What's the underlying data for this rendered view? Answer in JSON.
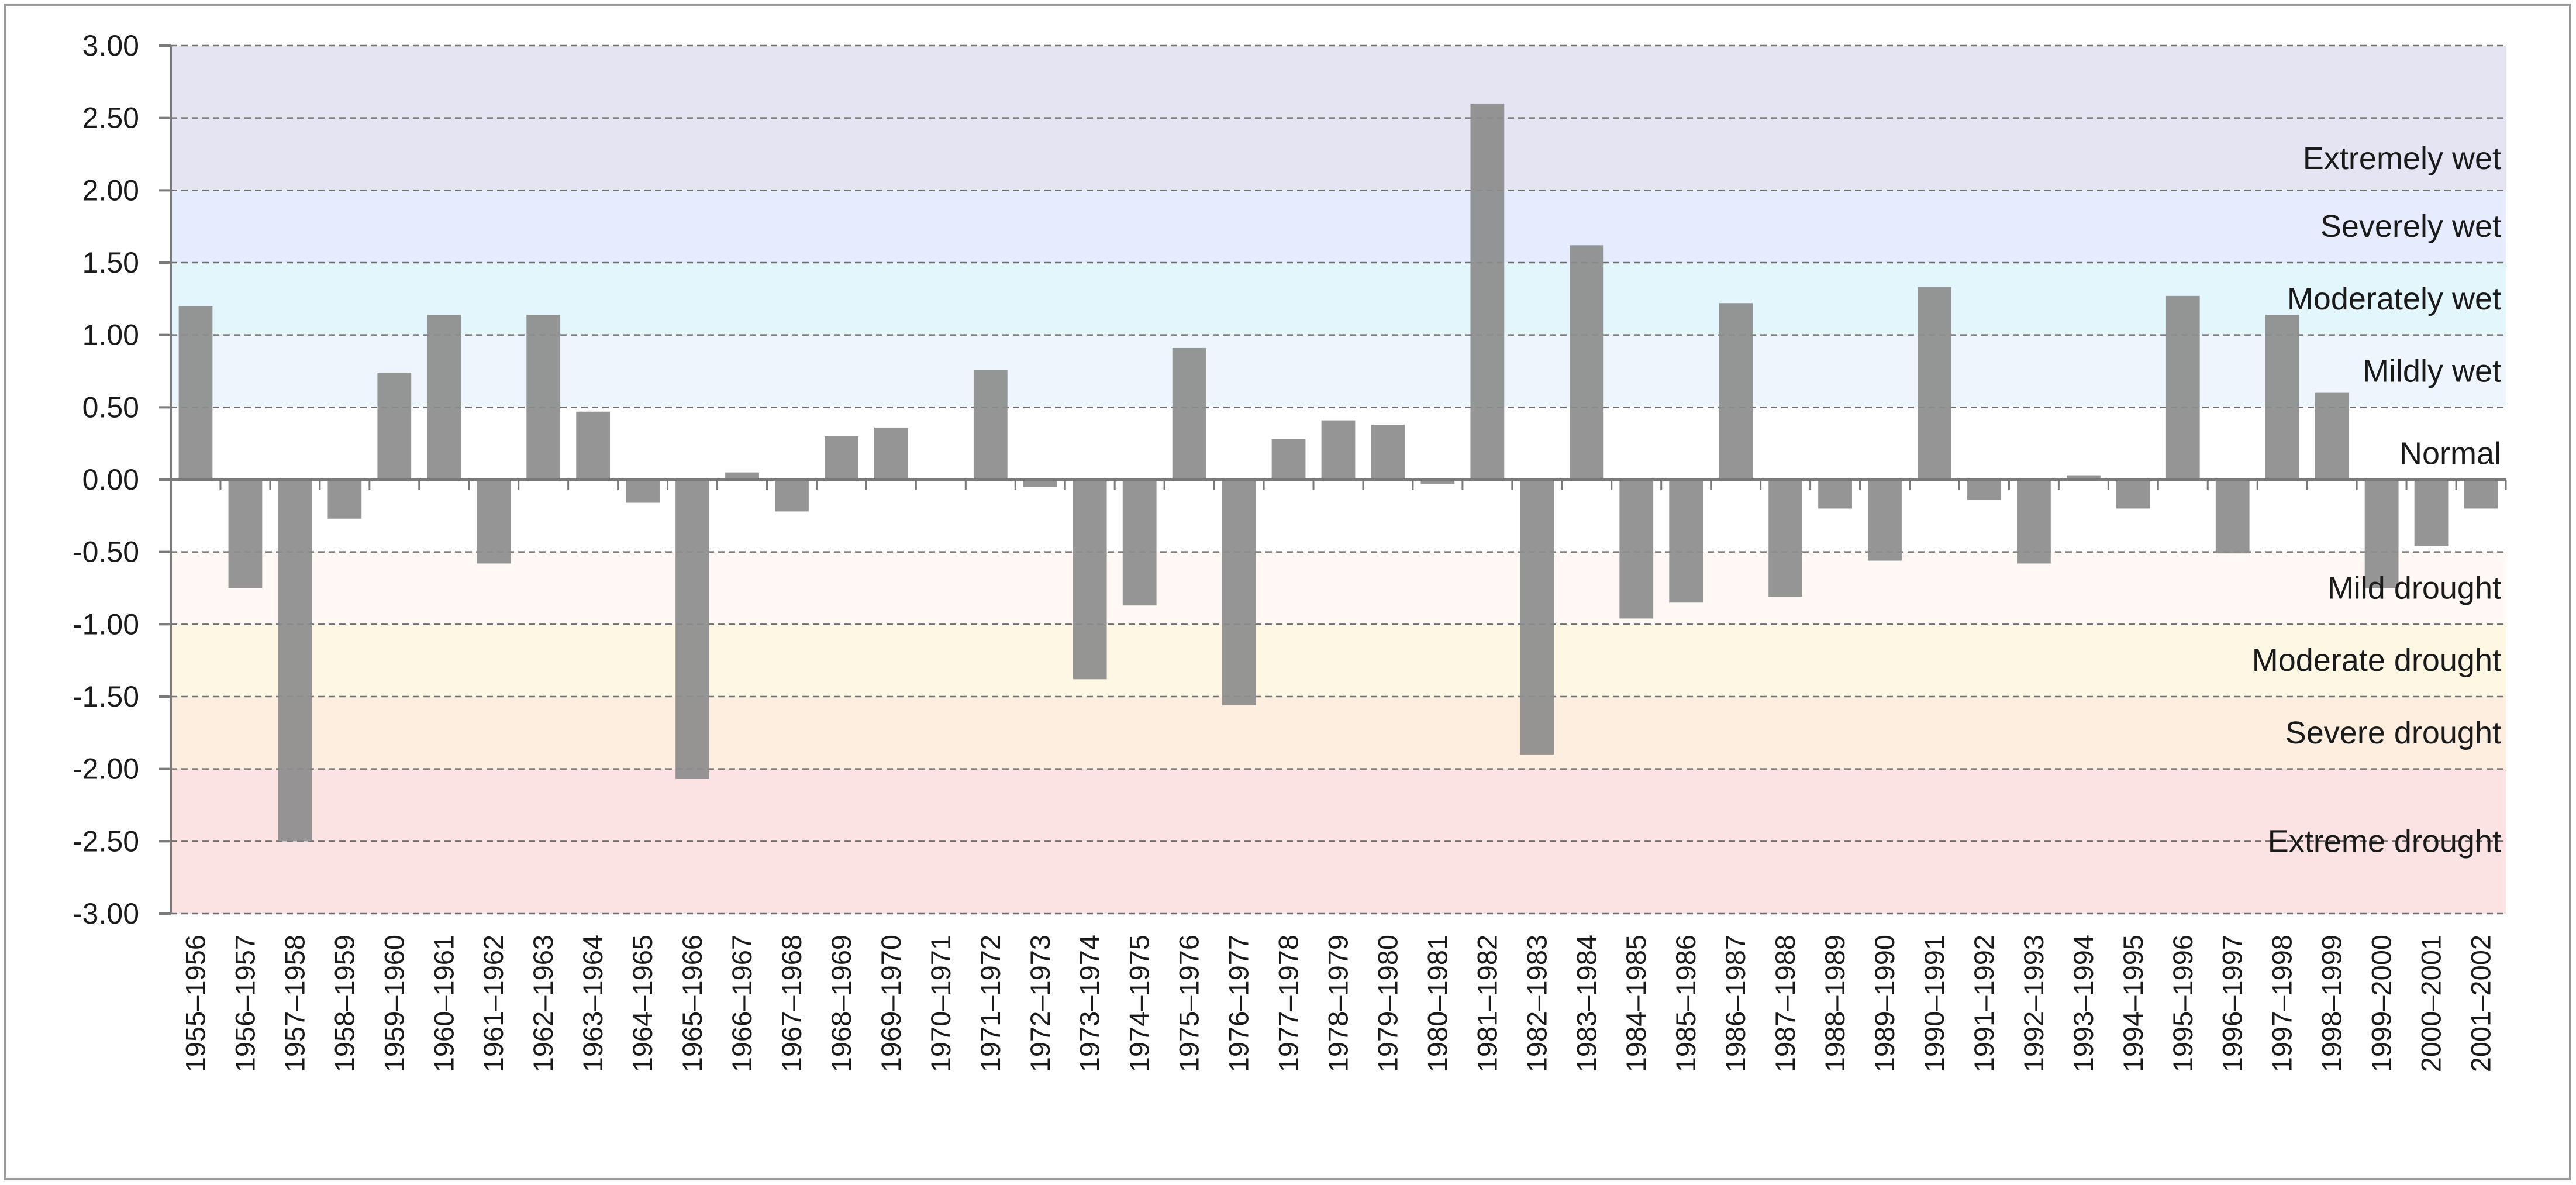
{
  "chart_data": {
    "type": "bar",
    "title": "",
    "xlabel": "",
    "ylabel": "",
    "ylim": [
      -3.0,
      3.0
    ],
    "yticks": [
      "3.00",
      "2.50",
      "2.00",
      "1.50",
      "1.00",
      "0.50",
      "0.00",
      "-0.50",
      "-1.00",
      "-1.50",
      "-2.00",
      "-2.50",
      "-3.00"
    ],
    "grid": true,
    "bar_color": "#8c8c8c",
    "categories": [
      "1955–1956",
      "1956–1957",
      "1957–1958",
      "1958–1959",
      "1959–1960",
      "1960–1961",
      "1961–1962",
      "1962–1963",
      "1963–1964",
      "1964–1965",
      "1965–1966",
      "1966–1967",
      "1967–1968",
      "1968–1969",
      "1969–1970",
      "1970–1971",
      "1971–1972",
      "1972–1973",
      "1973–1974",
      "1974–1975",
      "1975–1976",
      "1976–1977",
      "1977–1978",
      "1978–1979",
      "1979–1980",
      "1980–1981",
      "1981–1982",
      "1982–1983",
      "1983–1984",
      "1984–1985",
      "1985–1986",
      "1986–1987",
      "1987–1988",
      "1988–1989",
      "1989–1990",
      "1990–1991",
      "1991–1992",
      "1992–1993",
      "1993–1994",
      "1994–1995",
      "1995–1996",
      "1996–1997",
      "1997–1998",
      "1998–1999",
      "1999–2000",
      "2000–2001",
      "2001–2002"
    ],
    "values": [
      1.2,
      -0.75,
      -2.5,
      -0.27,
      0.74,
      1.14,
      -0.58,
      1.14,
      0.47,
      -0.16,
      -2.07,
      0.05,
      -0.22,
      0.3,
      0.36,
      0.0,
      0.76,
      -0.05,
      -1.38,
      -0.87,
      0.91,
      -1.56,
      0.28,
      0.41,
      0.38,
      -0.03,
      2.6,
      -1.9,
      1.62,
      -0.96,
      -0.85,
      1.22,
      -0.81,
      -0.2,
      -0.56,
      1.33,
      -0.14,
      -0.58,
      0.03,
      -0.2,
      1.27,
      -0.51,
      1.14,
      0.6,
      -0.75,
      -0.46,
      -0.2
    ],
    "bands": [
      {
        "label": "Extremely wet",
        "from": 2.0,
        "to": 3.0,
        "color": "#e5e4f3"
      },
      {
        "label": "Severely wet",
        "from": 1.5,
        "to": 2.0,
        "color": "#e6ecfd"
      },
      {
        "label": "Moderately wet",
        "from": 1.0,
        "to": 1.5,
        "color": "#e2f6fb"
      },
      {
        "label": "Mildly wet",
        "from": 0.5,
        "to": 1.0,
        "color": "#eef5fc"
      },
      {
        "label": "Normal",
        "from": -0.5,
        "to": 0.5,
        "color": "#ffffff"
      },
      {
        "label": "Mild drought",
        "from": -1.0,
        "to": -0.5,
        "color": "#fff8f4"
      },
      {
        "label": "Moderate drought",
        "from": -1.5,
        "to": -1.0,
        "color": "#fdf7e3"
      },
      {
        "label": "Severe drought",
        "from": -2.0,
        "to": -1.5,
        "color": "#fdeee0"
      },
      {
        "label": "Extreme drought",
        "from": -3.0,
        "to": -2.0,
        "color": "#fbe3e3"
      }
    ]
  }
}
